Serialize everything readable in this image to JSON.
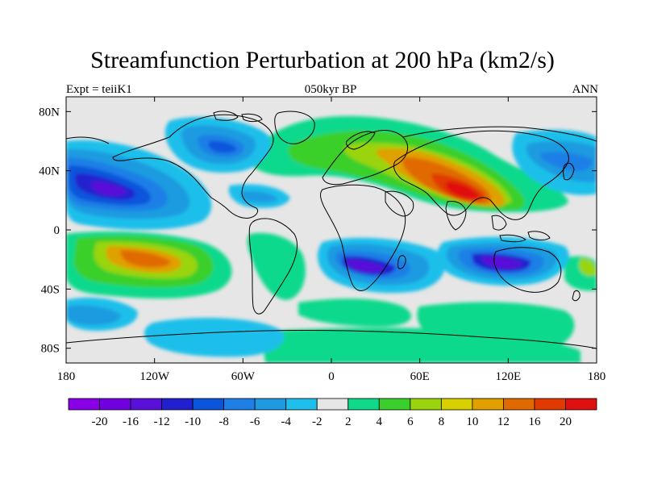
{
  "title": "Streamfunction Perturbation at 200 hPa (km2/s)",
  "subtitle_left": "Expt = teiiK1",
  "subtitle_center": "050kyr BP",
  "subtitle_right": "ANN",
  "map": {
    "lon_range": [
      -180,
      180
    ],
    "lat_range": [
      -90,
      90
    ],
    "y_ticks": [
      {
        "lat": 80,
        "label": "80N"
      },
      {
        "lat": 40,
        "label": "40N"
      },
      {
        "lat": 0,
        "label": "0"
      },
      {
        "lat": -40,
        "label": "40S"
      },
      {
        "lat": -80,
        "label": "80S"
      }
    ],
    "x_ticks": [
      {
        "lon": -180,
        "label": "180"
      },
      {
        "lon": -120,
        "label": "120W"
      },
      {
        "lon": -60,
        "label": "60W"
      },
      {
        "lon": 0,
        "label": "0"
      },
      {
        "lon": 60,
        "label": "60E"
      },
      {
        "lon": 120,
        "label": "120E"
      },
      {
        "lon": 180,
        "label": "180"
      }
    ]
  },
  "colorbar": {
    "labels": [
      "-20",
      "-16",
      "-12",
      "-10",
      "-8",
      "-6",
      "-4",
      "-2",
      "2",
      "4",
      "6",
      "8",
      "10",
      "12",
      "16",
      "20"
    ],
    "colors": [
      "#8a00e6",
      "#7000e0",
      "#5a10d8",
      "#2020cf",
      "#0a55dc",
      "#1e7fe6",
      "#1e9be0",
      "#1ebfea",
      "#e6e6e6",
      "#10d98c",
      "#3acf2a",
      "#9ad40e",
      "#d8d000",
      "#e0a000",
      "#e06a00",
      "#e03a00",
      "#e01010"
    ]
  }
}
